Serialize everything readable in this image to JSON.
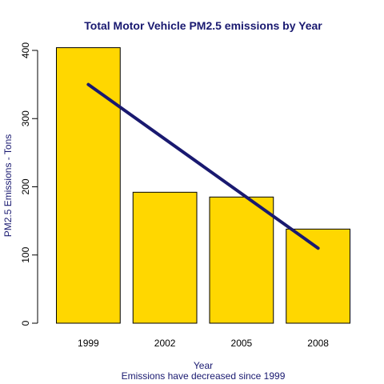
{
  "chart_data": {
    "type": "bar",
    "title": "Total Motor Vehicle PM2.5 emissions by Year",
    "xlabel": "Year",
    "ylabel": "PM2.5 Emissions - Tons",
    "subtitle": "Emissions have decreased since 1999",
    "categories": [
      "1999",
      "2002",
      "2005",
      "2008"
    ],
    "values": [
      404,
      192,
      185,
      138
    ],
    "ylim": [
      0,
      420
    ],
    "yticks": [
      0,
      100,
      200,
      300,
      400
    ],
    "trend_line": {
      "start": 350,
      "end": 110
    },
    "bar_color": "#FFD700",
    "trend_color": "#191970",
    "text_color": "#191970",
    "grid": false
  }
}
